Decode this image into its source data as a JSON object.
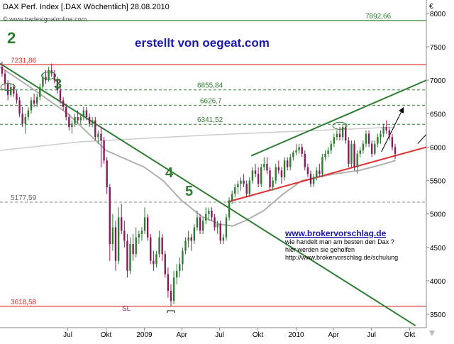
{
  "header": {
    "title": "DAX Perf. Index [.DAX  Wöchentlich] 28.08.2010",
    "website": "© www.tradesignalonline.com"
  },
  "annotations": {
    "author": "erstellt von oegeat.com",
    "wave_labels": [
      "2",
      "3",
      "4",
      "5"
    ],
    "stop_loss": "SL",
    "promo_url": "www.brokervorschlag.de",
    "promo_line1": "wie handelt man am besten den Dax ?",
    "promo_line2": "hier werden sie geholfen",
    "promo_line3": "http://www.brokervorschlag.de/schulung"
  },
  "chart_data": {
    "type": "candlestick",
    "title": "DAX Perf. Index [.DAX  Wöchentlich] 28.08.2010",
    "currency_symbol": "€",
    "y_axis_position": "right",
    "ylim": [
      3300,
      8200
    ],
    "y_ticks": [
      3500,
      4000,
      4500,
      5000,
      5500,
      6000,
      6500,
      7000,
      7500,
      8000
    ],
    "x_tick_labels": [
      {
        "label": "Jul",
        "date": "2008-07-01"
      },
      {
        "label": "Okt",
        "date": "2008-10-01"
      },
      {
        "label": "2009",
        "date": "2009-01-01"
      },
      {
        "label": "Apr",
        "date": "2009-04-01"
      },
      {
        "label": "Jul",
        "date": "2009-07-01"
      },
      {
        "label": "Okt",
        "date": "2009-10-01"
      },
      {
        "label": "2010",
        "date": "2010-01-01"
      },
      {
        "label": "Apr",
        "date": "2010-04-01"
      },
      {
        "label": "Jul",
        "date": "2010-07-01"
      },
      {
        "label": "Okt",
        "date": "2010-10-01"
      }
    ],
    "xlim": [
      "2008-01-20",
      "2010-11-10"
    ],
    "horizontal_levels": [
      {
        "value": 7892.66,
        "label": "7892,66",
        "color": "#2e7d32",
        "style": "solid"
      },
      {
        "value": 7231.86,
        "label": "7231,86",
        "color": "#e03030",
        "style": "solid"
      },
      {
        "value": 6855.84,
        "label": "6855,84",
        "color": "#2e7d32",
        "style": "dashed"
      },
      {
        "value": 6626.7,
        "label": "6626,7",
        "color": "#2e7d32",
        "style": "dashed"
      },
      {
        "value": 6341.52,
        "label": "6341,52",
        "color": "#2e7d32",
        "style": "dashed"
      },
      {
        "value": 5177.59,
        "label": "5177,59",
        "color": "#888888",
        "style": "dashed"
      },
      {
        "value": 3618.58,
        "label": "3618,58",
        "color": "#e03030",
        "style": "solid"
      }
    ],
    "trendlines": [
      {
        "name": "downtrend",
        "color": "#2e7d32",
        "from": [
          "2008-01-20",
          7250
        ],
        "to": [
          "2010-10-15",
          3330
        ]
      },
      {
        "name": "top-channel",
        "color": "#2e7d32",
        "from": [
          "2009-09-15",
          5870
        ],
        "to": [
          "2010-11-10",
          7000
        ]
      },
      {
        "name": "rising-support",
        "color": "#e03030",
        "from": [
          "2009-07-20",
          5180
        ],
        "to": [
          "2010-11-10",
          6000
        ]
      },
      {
        "name": "projection",
        "color": "#000000",
        "from": [
          "2010-07-25",
          5930
        ],
        "to": [
          "2010-09-15",
          6580
        ],
        "arrow": true
      },
      {
        "name": "projection-2",
        "color": "#000000",
        "from": [
          "2010-10-20",
          6050
        ],
        "to": [
          "2010-11-10",
          6190
        ]
      }
    ],
    "moving_average": {
      "color": "#b0b0b0",
      "points": [
        [
          "2008-01-20",
          7200
        ],
        [
          "2008-04-01",
          6900
        ],
        [
          "2008-07-01",
          6500
        ],
        [
          "2008-10-01",
          5950
        ],
        [
          "2009-01-01",
          5700
        ],
        [
          "2009-02-15",
          5500
        ],
        [
          "2009-04-01",
          5200
        ],
        [
          "2009-05-20",
          4960
        ],
        [
          "2009-07-01",
          4850
        ],
        [
          "2009-08-01",
          4820
        ],
        [
          "2009-09-01",
          4900
        ],
        [
          "2009-10-15",
          5050
        ],
        [
          "2009-12-01",
          5300
        ],
        [
          "2010-01-15",
          5500
        ],
        [
          "2010-03-01",
          5560
        ],
        [
          "2010-04-15",
          5610
        ],
        [
          "2010-06-01",
          5650
        ],
        [
          "2010-07-15",
          5720
        ],
        [
          "2010-08-28",
          5800
        ]
      ]
    },
    "long_moving_average": {
      "color": "#cccccc",
      "points": [
        [
          "2008-01-20",
          5950
        ],
        [
          "2008-08-01",
          6080
        ],
        [
          "2009-06-01",
          6180
        ],
        [
          "2010-08-28",
          6300
        ]
      ]
    },
    "candle_colors": {
      "up": "#2e7d32",
      "down": "#8b1a5c"
    },
    "candles": [
      [
        "2008-01-25",
        7200,
        7280,
        7050,
        7100
      ],
      [
        "2008-02-01",
        7100,
        7150,
        6850,
        6950
      ],
      [
        "2008-02-08",
        6950,
        7000,
        6700,
        6780
      ],
      [
        "2008-02-15",
        6780,
        6950,
        6750,
        6900
      ],
      [
        "2008-02-22",
        6900,
        6950,
        6750,
        6800
      ],
      [
        "2008-02-29",
        6800,
        6850,
        6650,
        6700
      ],
      [
        "2008-03-07",
        6700,
        6750,
        6450,
        6500
      ],
      [
        "2008-03-14",
        6500,
        6600,
        6300,
        6350
      ],
      [
        "2008-03-21",
        6350,
        6500,
        6200,
        6450
      ],
      [
        "2008-03-28",
        6450,
        6600,
        6400,
        6550
      ],
      [
        "2008-04-04",
        6550,
        6750,
        6500,
        6700
      ],
      [
        "2008-04-11",
        6700,
        6800,
        6600,
        6650
      ],
      [
        "2008-04-18",
        6650,
        6800,
        6600,
        6750
      ],
      [
        "2008-04-25",
        6750,
        6950,
        6700,
        6900
      ],
      [
        "2008-05-02",
        6900,
        7100,
        6850,
        7050
      ],
      [
        "2008-05-09",
        7050,
        7150,
        6950,
        7000
      ],
      [
        "2008-05-16",
        7000,
        7200,
        6980,
        7150
      ],
      [
        "2008-05-23",
        7150,
        7250,
        7050,
        7100
      ],
      [
        "2008-05-30",
        7100,
        7150,
        6950,
        7000
      ],
      [
        "2008-06-06",
        7000,
        7050,
        6800,
        6850
      ],
      [
        "2008-06-13",
        6850,
        6900,
        6650,
        6700
      ],
      [
        "2008-06-20",
        6700,
        6750,
        6550,
        6600
      ],
      [
        "2008-06-27",
        6600,
        6650,
        6400,
        6450
      ],
      [
        "2008-07-04",
        6450,
        6500,
        6250,
        6300
      ],
      [
        "2008-07-11",
        6300,
        6400,
        6200,
        6350
      ],
      [
        "2008-07-18",
        6350,
        6500,
        6300,
        6450
      ],
      [
        "2008-07-25",
        6450,
        6550,
        6350,
        6400
      ],
      [
        "2008-08-01",
        6400,
        6500,
        6350,
        6450
      ],
      [
        "2008-08-08",
        6450,
        6600,
        6400,
        6550
      ],
      [
        "2008-08-15",
        6550,
        6600,
        6400,
        6450
      ],
      [
        "2008-08-22",
        6450,
        6500,
        6300,
        6350
      ],
      [
        "2008-08-29",
        6350,
        6450,
        6300,
        6400
      ],
      [
        "2008-09-05",
        6400,
        6450,
        6100,
        6150
      ],
      [
        "2008-09-12",
        6150,
        6250,
        6050,
        6200
      ],
      [
        "2008-09-19",
        6200,
        6300,
        5700,
        6100
      ],
      [
        "2008-09-26",
        6100,
        6150,
        5750,
        5800
      ],
      [
        "2008-10-03",
        5800,
        5850,
        5300,
        5400
      ],
      [
        "2008-10-10",
        5400,
        5450,
        4300,
        4550
      ],
      [
        "2008-10-17",
        4550,
        5000,
        4450,
        4800
      ],
      [
        "2008-10-24",
        4800,
        4900,
        4150,
        4300
      ],
      [
        "2008-10-31",
        4300,
        5100,
        4250,
        4950
      ],
      [
        "2008-11-07",
        4950,
        5150,
        4700,
        4750
      ],
      [
        "2008-11-14",
        4750,
        4900,
        4500,
        4600
      ],
      [
        "2008-11-21",
        4600,
        4700,
        4050,
        4150
      ],
      [
        "2008-11-28",
        4150,
        4650,
        4100,
        4550
      ],
      [
        "2008-12-05",
        4550,
        4700,
        4300,
        4400
      ],
      [
        "2008-12-12",
        4400,
        4800,
        4350,
        4650
      ],
      [
        "2008-12-19",
        4650,
        4750,
        4550,
        4700
      ],
      [
        "2008-12-26",
        4700,
        4800,
        4600,
        4750
      ],
      [
        "2009-01-02",
        4750,
        5100,
        4700,
        4950
      ],
      [
        "2009-01-09",
        4950,
        5000,
        4600,
        4650
      ],
      [
        "2009-01-16",
        4650,
        4700,
        4250,
        4300
      ],
      [
        "2009-01-23",
        4300,
        4450,
        4150,
        4250
      ],
      [
        "2009-01-30",
        4250,
        4450,
        4200,
        4400
      ],
      [
        "2009-02-06",
        4400,
        4750,
        4350,
        4650
      ],
      [
        "2009-02-13",
        4650,
        4700,
        4300,
        4400
      ],
      [
        "2009-02-20",
        4400,
        4450,
        4050,
        4100
      ],
      [
        "2009-02-27",
        4100,
        4200,
        3750,
        3850
      ],
      [
        "2009-03-06",
        3850,
        3950,
        3620,
        3700
      ],
      [
        "2009-03-13",
        3700,
        4150,
        3650,
        4050
      ],
      [
        "2009-03-20",
        4050,
        4250,
        3950,
        4150
      ],
      [
        "2009-03-27",
        4150,
        4350,
        4050,
        4250
      ],
      [
        "2009-04-03",
        4250,
        4500,
        4150,
        4450
      ],
      [
        "2009-04-10",
        4450,
        4650,
        4400,
        4600
      ],
      [
        "2009-04-17",
        4600,
        4750,
        4500,
        4650
      ],
      [
        "2009-04-24",
        4650,
        4700,
        4450,
        4600
      ],
      [
        "2009-05-01",
        4600,
        4850,
        4550,
        4800
      ],
      [
        "2009-05-08",
        4800,
        5050,
        4750,
        4950
      ],
      [
        "2009-05-15",
        4950,
        5000,
        4700,
        4750
      ],
      [
        "2009-05-22",
        4750,
        4950,
        4700,
        4900
      ],
      [
        "2009-05-29",
        4900,
        5100,
        4850,
        5000
      ],
      [
        "2009-06-05",
        5000,
        5100,
        4900,
        5050
      ],
      [
        "2009-06-12",
        5050,
        5100,
        4900,
        4950
      ],
      [
        "2009-06-19",
        4950,
        5000,
        4750,
        4800
      ],
      [
        "2009-06-26",
        4800,
        4900,
        4700,
        4850
      ],
      [
        "2009-07-03",
        4850,
        4900,
        4550,
        4600
      ],
      [
        "2009-07-10",
        4600,
        4700,
        4550,
        4650
      ],
      [
        "2009-07-17",
        4650,
        5000,
        4600,
        4950
      ],
      [
        "2009-07-24",
        4950,
        5250,
        4900,
        5200
      ],
      [
        "2009-07-31",
        5200,
        5350,
        5150,
        5300
      ],
      [
        "2009-08-07",
        5300,
        5450,
        5250,
        5400
      ],
      [
        "2009-08-14",
        5400,
        5500,
        5300,
        5450
      ],
      [
        "2009-08-21",
        5450,
        5550,
        5350,
        5500
      ],
      [
        "2009-08-28",
        5500,
        5600,
        5400,
        5450
      ],
      [
        "2009-09-04",
        5450,
        5500,
        5250,
        5300
      ],
      [
        "2009-09-11",
        5300,
        5550,
        5250,
        5500
      ],
      [
        "2009-09-18",
        5500,
        5700,
        5450,
        5650
      ],
      [
        "2009-09-25",
        5650,
        5750,
        5550,
        5600
      ],
      [
        "2009-10-02",
        5600,
        5700,
        5400,
        5450
      ],
      [
        "2009-10-09",
        5450,
        5750,
        5400,
        5700
      ],
      [
        "2009-10-16",
        5700,
        5850,
        5650,
        5750
      ],
      [
        "2009-10-23",
        5750,
        5850,
        5600,
        5650
      ],
      [
        "2009-10-30",
        5650,
        5700,
        5350,
        5400
      ],
      [
        "2009-11-06",
        5400,
        5550,
        5350,
        5500
      ],
      [
        "2009-11-13",
        5500,
        5750,
        5450,
        5700
      ],
      [
        "2009-11-20",
        5700,
        5800,
        5600,
        5650
      ],
      [
        "2009-11-27",
        5650,
        5700,
        5450,
        5550
      ],
      [
        "2009-12-04",
        5550,
        5850,
        5500,
        5800
      ],
      [
        "2009-12-11",
        5800,
        5850,
        5650,
        5700
      ],
      [
        "2009-12-18",
        5700,
        5900,
        5650,
        5850
      ],
      [
        "2009-12-25",
        5850,
        5950,
        5800,
        5920
      ],
      [
        "2010-01-01",
        5920,
        6050,
        5880,
        5950
      ],
      [
        "2010-01-08",
        5950,
        6050,
        5900,
        6000
      ],
      [
        "2010-01-15",
        6000,
        6050,
        5850,
        5900
      ],
      [
        "2010-01-22",
        5900,
        5950,
        5650,
        5700
      ],
      [
        "2010-01-29",
        5700,
        5750,
        5550,
        5600
      ],
      [
        "2010-02-05",
        5600,
        5650,
        5400,
        5450
      ],
      [
        "2010-02-12",
        5450,
        5600,
        5400,
        5550
      ],
      [
        "2010-02-19",
        5550,
        5700,
        5500,
        5650
      ],
      [
        "2010-02-26",
        5650,
        5750,
        5550,
        5600
      ],
      [
        "2010-03-05",
        5600,
        5900,
        5550,
        5850
      ],
      [
        "2010-03-12",
        5850,
        5950,
        5800,
        5900
      ],
      [
        "2010-03-19",
        5900,
        6000,
        5850,
        5950
      ],
      [
        "2010-03-26",
        5950,
        6100,
        5900,
        6050
      ],
      [
        "2010-04-02",
        6050,
        6200,
        6000,
        6150
      ],
      [
        "2010-04-09",
        6150,
        6250,
        6100,
        6200
      ],
      [
        "2010-04-16",
        6200,
        6300,
        6100,
        6150
      ],
      [
        "2010-04-23",
        6150,
        6350,
        6100,
        6300
      ],
      [
        "2010-04-30",
        6300,
        6340,
        6050,
        6100
      ],
      [
        "2010-05-07",
        6100,
        6150,
        5700,
        5750
      ],
      [
        "2010-05-14",
        5750,
        6100,
        5700,
        6050
      ],
      [
        "2010-05-21",
        6050,
        6100,
        5650,
        5700
      ],
      [
        "2010-05-28",
        5700,
        5950,
        5600,
        5900
      ],
      [
        "2010-06-04",
        5900,
        6000,
        5850,
        5950
      ],
      [
        "2010-06-11",
        5950,
        6100,
        5900,
        6050
      ],
      [
        "2010-06-18",
        6050,
        6250,
        6000,
        6200
      ],
      [
        "2010-06-25",
        6200,
        6250,
        6000,
        6050
      ],
      [
        "2010-07-02",
        6050,
        6100,
        5850,
        5900
      ],
      [
        "2010-07-09",
        5900,
        6100,
        5880,
        6050
      ],
      [
        "2010-07-16",
        6050,
        6200,
        6000,
        6150
      ],
      [
        "2010-07-23",
        6150,
        6250,
        6050,
        6200
      ],
      [
        "2010-07-30",
        6200,
        6350,
        6150,
        6300
      ],
      [
        "2010-08-06",
        6300,
        6400,
        6200,
        6250
      ],
      [
        "2010-08-13",
        6250,
        6300,
        6100,
        6150
      ],
      [
        "2010-08-20",
        6150,
        6200,
        5950,
        6000
      ],
      [
        "2010-08-27",
        6000,
        6050,
        5820,
        5900
      ]
    ]
  }
}
